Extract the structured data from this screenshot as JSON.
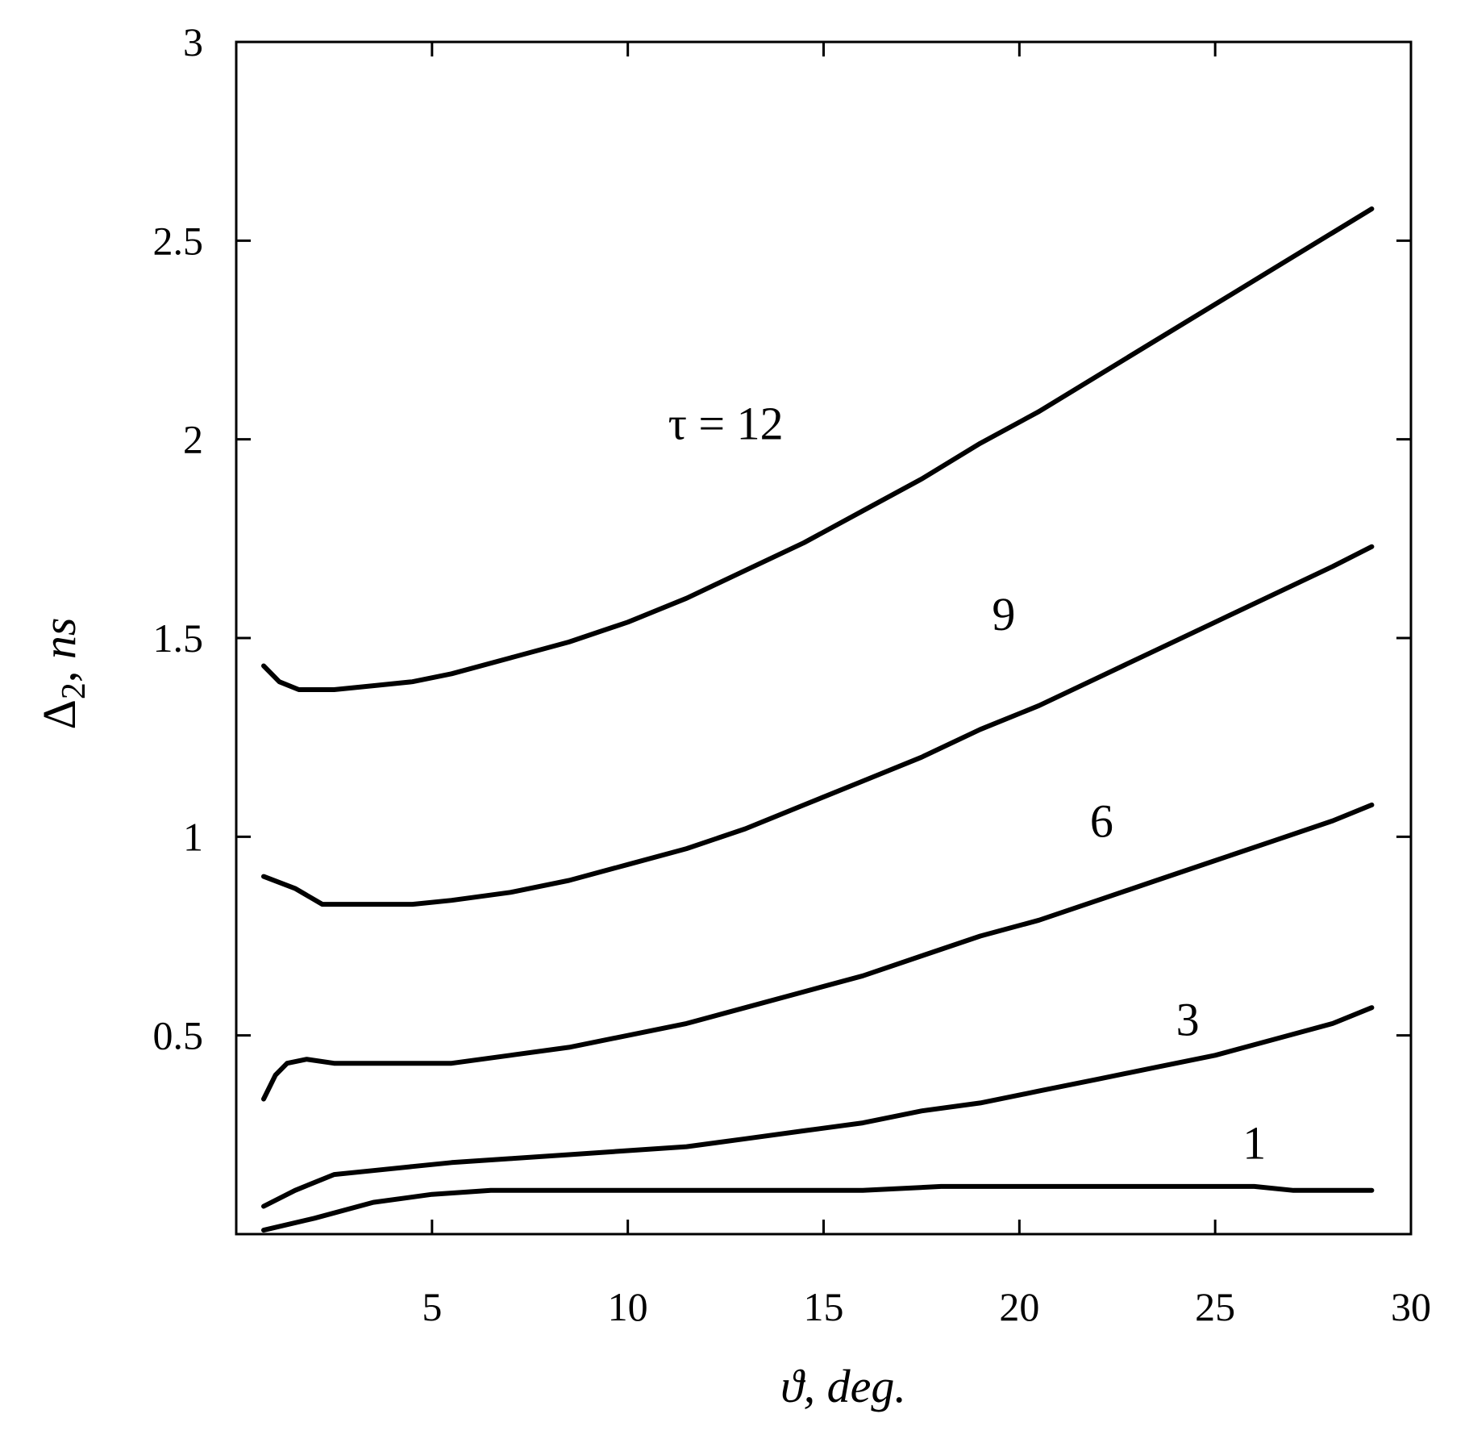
{
  "chart_data": {
    "type": "line",
    "xlabel_symbol": "ϑ",
    "xlabel_unit": ", deg.",
    "ylabel_symbol": "Δ",
    "ylabel_subscript": "2",
    "ylabel_unit": "ns",
    "xlim": [
      0,
      30
    ],
    "ylim": [
      0,
      3
    ],
    "xticks": [
      "5",
      "10",
      "15",
      "20",
      "25",
      "30"
    ],
    "yticks": [
      "0.5",
      "1",
      "1.5",
      "2",
      "2.5",
      "3"
    ],
    "xtick_values": [
      5,
      10,
      15,
      20,
      25,
      30
    ],
    "ytick_values": [
      0.5,
      1,
      1.5,
      2,
      2.5,
      3
    ],
    "grid": false,
    "line_color": "#000000",
    "series": [
      {
        "name": "τ = 12",
        "x": [
          0.7,
          1.1,
          1.6,
          2.5,
          3.5,
          4.5,
          5.5,
          7,
          8.5,
          10,
          11.5,
          13,
          14.5,
          16,
          17.5,
          19,
          20.5,
          22,
          23.5,
          25,
          26.5,
          28,
          29
        ],
        "y": [
          1.43,
          1.39,
          1.37,
          1.37,
          1.38,
          1.39,
          1.41,
          1.45,
          1.49,
          1.54,
          1.6,
          1.67,
          1.74,
          1.82,
          1.9,
          1.99,
          2.07,
          2.16,
          2.25,
          2.34,
          2.43,
          2.52,
          2.58
        ]
      },
      {
        "name": "9",
        "x": [
          0.7,
          1.5,
          2.2,
          3.5,
          4.5,
          5.5,
          7,
          8.5,
          10,
          11.5,
          13,
          14.5,
          16,
          17.5,
          19,
          20.5,
          22,
          23.5,
          25,
          26.5,
          28,
          29
        ],
        "y": [
          0.9,
          0.87,
          0.83,
          0.83,
          0.83,
          0.84,
          0.86,
          0.89,
          0.93,
          0.97,
          1.02,
          1.08,
          1.14,
          1.2,
          1.27,
          1.33,
          1.4,
          1.47,
          1.54,
          1.61,
          1.68,
          1.73
        ]
      },
      {
        "name": "6",
        "x": [
          0.7,
          1.0,
          1.3,
          1.8,
          2.5,
          3.5,
          4.5,
          5.5,
          7,
          8.5,
          10,
          11.5,
          13,
          14.5,
          16,
          17.5,
          19,
          20.5,
          22,
          23.5,
          25,
          26.5,
          28,
          29
        ],
        "y": [
          0.34,
          0.4,
          0.43,
          0.44,
          0.43,
          0.43,
          0.43,
          0.43,
          0.45,
          0.47,
          0.5,
          0.53,
          0.57,
          0.61,
          0.65,
          0.7,
          0.75,
          0.79,
          0.84,
          0.89,
          0.94,
          0.99,
          1.04,
          1.08
        ]
      },
      {
        "name": "3",
        "x": [
          0.7,
          1.5,
          2.5,
          3.5,
          4.5,
          5.5,
          7,
          8.5,
          10,
          11.5,
          13,
          14.5,
          16,
          17.5,
          19,
          20.5,
          22,
          23.5,
          25,
          26.5,
          28,
          29
        ],
        "y": [
          0.07,
          0.11,
          0.15,
          0.16,
          0.17,
          0.18,
          0.19,
          0.2,
          0.21,
          0.22,
          0.24,
          0.26,
          0.28,
          0.31,
          0.33,
          0.36,
          0.39,
          0.42,
          0.45,
          0.49,
          0.53,
          0.57
        ]
      },
      {
        "name": "1",
        "x": [
          0.7,
          2,
          3.5,
          5,
          6.5,
          8,
          10,
          12,
          14,
          16,
          18,
          20,
          22,
          24,
          26,
          27,
          28,
          29
        ],
        "y": [
          0.01,
          0.04,
          0.08,
          0.1,
          0.11,
          0.11,
          0.11,
          0.11,
          0.11,
          0.11,
          0.12,
          0.12,
          0.12,
          0.12,
          0.12,
          0.11,
          0.11,
          0.11
        ]
      }
    ]
  }
}
